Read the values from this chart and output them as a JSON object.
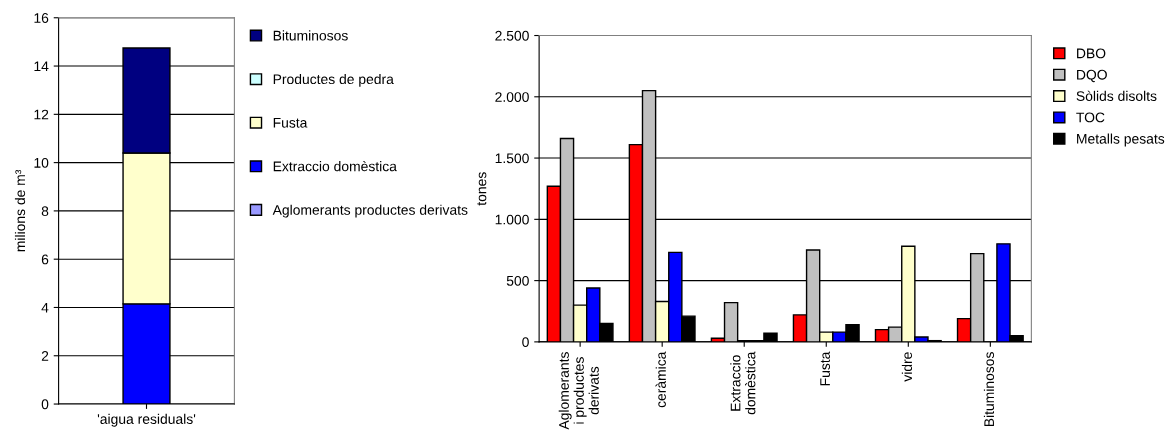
{
  "chart_data": [
    {
      "type": "bar",
      "stacked": true,
      "ylabel": "milions de m³",
      "categories": [
        "'aigua residuals'"
      ],
      "ylim": [
        0,
        16
      ],
      "yticks": [
        0,
        2,
        4,
        6,
        8,
        10,
        12,
        14,
        16
      ],
      "grid": "y",
      "legend": "right",
      "series": [
        {
          "name": "Aglomerants productes derivats",
          "color": "#9999ff",
          "values": [
            null
          ]
        },
        {
          "name": "Extraccio domèstica",
          "color": "#0000ff",
          "values": [
            4.15
          ]
        },
        {
          "name": "Fusta",
          "color": "#ffffcc",
          "values": [
            6.25
          ]
        },
        {
          "name": "Productes de pedra",
          "color": "#ccffff",
          "values": [
            null
          ]
        },
        {
          "name": "Bituminosos",
          "color": "#000080",
          "values": [
            4.35
          ]
        }
      ]
    },
    {
      "type": "bar",
      "ylabel": "tones",
      "categories": [
        "Aglomerants\ni productes\nderivats",
        "ceràmica",
        "Extraccio\ndomèstica",
        "Fusta",
        "vidre",
        "Bituminosos"
      ],
      "ylim": [
        0,
        2500
      ],
      "yticks": [
        0,
        {
          "value": 500,
          "label": "500"
        },
        {
          "value": 1000,
          "label": "1.000"
        },
        {
          "value": 1500,
          "label": "1.500"
        },
        {
          "value": 2000,
          "label": "2.000"
        },
        {
          "value": 2500,
          "label": "2.500"
        }
      ],
      "grid": "y",
      "legend": "right",
      "series": [
        {
          "name": "DBO",
          "color": "#ff0000",
          "values": [
            1270,
            1610,
            30,
            220,
            100,
            190
          ]
        },
        {
          "name": "DQO",
          "color": "#c0c0c0",
          "values": [
            1660,
            2050,
            320,
            750,
            120,
            720
          ]
        },
        {
          "name": "Sòlids disolts",
          "color": "#ffffcc",
          "values": [
            300,
            330,
            10,
            80,
            780,
            null
          ]
        },
        {
          "name": "TOC",
          "color": "#0000ff",
          "values": [
            440,
            730,
            10,
            80,
            40,
            800
          ]
        },
        {
          "name": "Metalls pesats",
          "color": "#000000",
          "values": [
            150,
            210,
            70,
            140,
            10,
            50
          ]
        }
      ]
    }
  ]
}
